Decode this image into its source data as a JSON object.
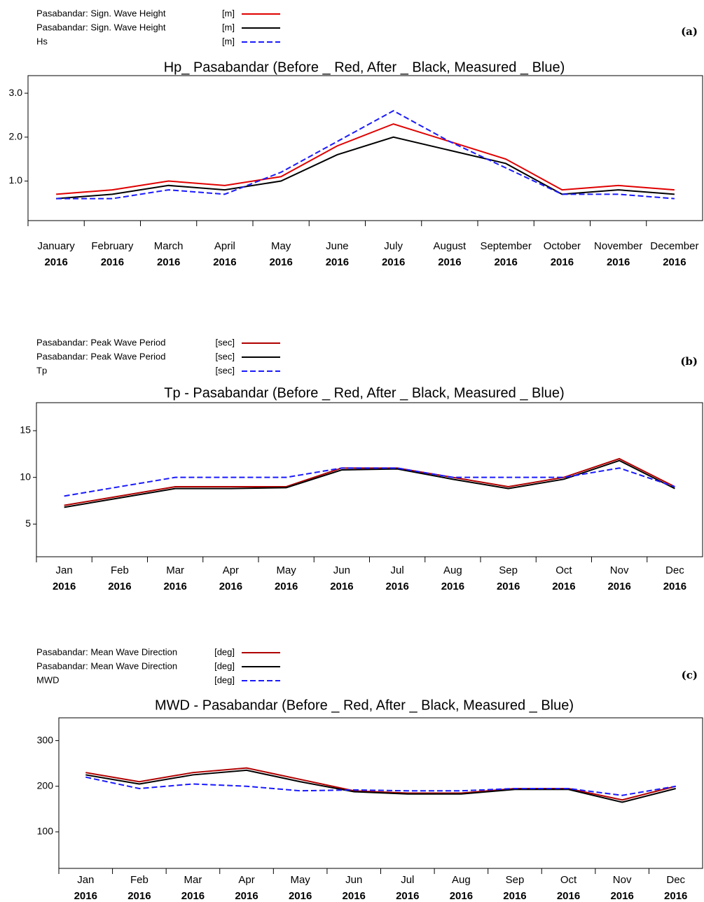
{
  "chart_data": [
    {
      "type": "line",
      "panel_label": "(a)",
      "title": "Hp_ Pasabandar (Before _ Red, After _ Black, Measured _ Blue)",
      "x_labels": [
        [
          "January",
          "2016"
        ],
        [
          "February",
          "2016"
        ],
        [
          "March",
          "2016"
        ],
        [
          "April",
          "2016"
        ],
        [
          "May",
          "2016"
        ],
        [
          "June",
          "2016"
        ],
        [
          "July",
          "2016"
        ],
        [
          "August",
          "2016"
        ],
        [
          "September",
          "2016"
        ],
        [
          "October",
          "2016"
        ],
        [
          "November",
          "2016"
        ],
        [
          "December",
          "2016"
        ]
      ],
      "ylim": [
        0.1,
        3.4
      ],
      "yticks": [
        {
          "value": 1,
          "label": "1.0"
        },
        {
          "value": 2,
          "label": "2.0"
        },
        {
          "value": 3,
          "label": "3.0"
        }
      ],
      "series": [
        {
          "name": "Pasabandar: Sign. Wave Height",
          "unit": "[m]",
          "color": "#e00000",
          "style": "solid",
          "values": [
            0.7,
            0.8,
            1.0,
            0.9,
            1.1,
            1.8,
            2.3,
            1.9,
            1.5,
            0.8,
            0.9,
            0.8
          ]
        },
        {
          "name": "Pasabandar: Sign. Wave Height",
          "unit": "[m]",
          "color": "#000000",
          "style": "solid",
          "values": [
            0.6,
            0.7,
            0.9,
            0.8,
            1.0,
            1.6,
            2.0,
            1.7,
            1.4,
            0.7,
            0.8,
            0.7
          ]
        },
        {
          "name": "Hs",
          "unit": "[m]",
          "color": "#1a1aff",
          "style": "dashed",
          "values": [
            0.6,
            0.6,
            0.8,
            0.7,
            1.2,
            1.9,
            2.6,
            1.9,
            1.3,
            0.7,
            0.7,
            0.6
          ]
        }
      ]
    },
    {
      "type": "line",
      "panel_label": "(b)",
      "title": "Tp - Pasabandar (Before _ Red, After _ Black, Measured _ Blue)",
      "x_labels": [
        [
          "Jan",
          "2016"
        ],
        [
          "Feb",
          "2016"
        ],
        [
          "Mar",
          "2016"
        ],
        [
          "Apr",
          "2016"
        ],
        [
          "May",
          "2016"
        ],
        [
          "Jun",
          "2016"
        ],
        [
          "Jul",
          "2016"
        ],
        [
          "Aug",
          "2016"
        ],
        [
          "Sep",
          "2016"
        ],
        [
          "Oct",
          "2016"
        ],
        [
          "Nov",
          "2016"
        ],
        [
          "Dec",
          "2016"
        ]
      ],
      "ylim": [
        1.5,
        18
      ],
      "yticks": [
        5,
        10,
        15
      ],
      "series": [
        {
          "name": "Pasabandar: Peak Wave Period",
          "unit": "[sec]",
          "color": "#b00000",
          "style": "solid",
          "values": [
            7,
            8,
            9,
            9,
            9,
            11,
            11,
            10,
            9,
            10,
            12,
            9
          ]
        },
        {
          "name": "Pasabandar: Peak Wave Period",
          "unit": "[sec]",
          "color": "#000000",
          "style": "solid",
          "values": [
            6.8,
            7.8,
            8.8,
            8.8,
            8.9,
            10.8,
            10.9,
            9.8,
            8.8,
            9.8,
            11.8,
            8.8
          ]
        },
        {
          "name": "Tp",
          "unit": "[sec]",
          "color": "#1a1aff",
          "style": "dashed",
          "values": [
            8,
            9,
            10,
            10,
            10,
            11,
            11,
            10,
            10,
            10,
            11,
            9
          ]
        }
      ]
    },
    {
      "type": "line",
      "panel_label": "(c)",
      "title": "MWD - Pasabandar (Before _ Red, After _ Black, Measured _ Blue)",
      "x_labels": [
        [
          "Jan",
          "2016"
        ],
        [
          "Feb",
          "2016"
        ],
        [
          "Mar",
          "2016"
        ],
        [
          "Apr",
          "2016"
        ],
        [
          "May",
          "2016"
        ],
        [
          "Jun",
          "2016"
        ],
        [
          "Jul",
          "2016"
        ],
        [
          "Aug",
          "2016"
        ],
        [
          "Sep",
          "2016"
        ],
        [
          "Oct",
          "2016"
        ],
        [
          "Nov",
          "2016"
        ],
        [
          "Dec",
          "2016"
        ]
      ],
      "ylim": [
        20,
        350
      ],
      "yticks": [
        100,
        200,
        300
      ],
      "series": [
        {
          "name": "Pasabandar: Mean Wave Direction",
          "unit": "[deg]",
          "color": "#b00000",
          "style": "solid",
          "values": [
            230,
            210,
            230,
            240,
            215,
            190,
            185,
            185,
            195,
            195,
            170,
            200
          ]
        },
        {
          "name": "Pasabandar: Mean Wave Direction",
          "unit": "[deg]",
          "color": "#000000",
          "style": "solid",
          "values": [
            225,
            205,
            225,
            235,
            210,
            188,
            183,
            183,
            193,
            193,
            165,
            195
          ]
        },
        {
          "name": "MWD",
          "unit": "[deg]",
          "color": "#1a1aff",
          "style": "dashed",
          "values": [
            220,
            195,
            205,
            200,
            190,
            192,
            190,
            190,
            195,
            195,
            180,
            200
          ]
        }
      ]
    }
  ]
}
